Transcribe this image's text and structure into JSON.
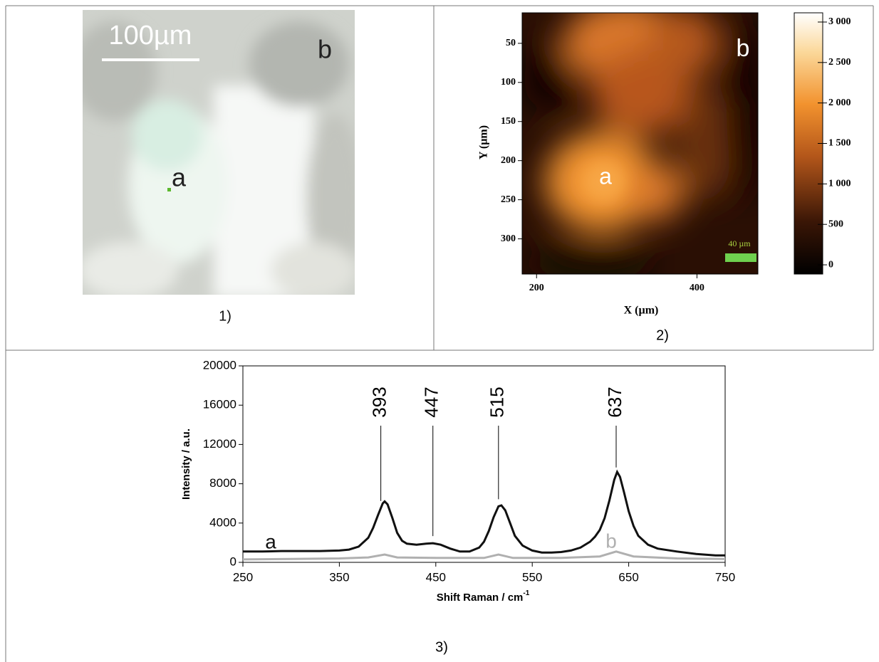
{
  "photo": {
    "scale_label": "100µm",
    "corner_label": "b",
    "point_label": "a",
    "caption": "1)"
  },
  "chart_data": [
    {
      "type": "heatmap",
      "x_label": "X (µm)",
      "y_label": "Y (µm)",
      "xlim": [
        182,
        476
      ],
      "xticks": [
        200,
        400
      ],
      "ylim": [
        11,
        345
      ],
      "y_inverted": true,
      "yticks": [
        50,
        100,
        150,
        200,
        250,
        300
      ],
      "colorbar": {
        "lim": [
          -114,
          3114
        ],
        "ticks": [
          0,
          500,
          {
            "value": 1000,
            "label": "1 000"
          },
          {
            "value": 1500,
            "label": "1 500"
          },
          {
            "value": 2000,
            "label": "2 000"
          },
          {
            "value": 2500,
            "label": "2 500"
          },
          {
            "value": 3000,
            "label": "3 000"
          }
        ]
      },
      "annotations": [
        "a",
        "b"
      ],
      "scale_bar_label": "40 µm",
      "caption": "2)"
    },
    {
      "type": "line",
      "x_label": "Shift Raman / cm",
      "x_label_sup": "-1",
      "y_label": "Intensity / a.u.",
      "xlim": [
        250,
        750
      ],
      "xticks": [
        250,
        350,
        450,
        550,
        650,
        750
      ],
      "ylim": [
        0,
        20000
      ],
      "yticks": [
        0,
        4000,
        8000,
        12000,
        16000,
        20000
      ],
      "series": [
        {
          "name": "a",
          "color": "#111111",
          "x": [
            250,
            270,
            290,
            310,
            330,
            350,
            360,
            370,
            380,
            385,
            390,
            395,
            397,
            400,
            405,
            410,
            415,
            420,
            430,
            440,
            447,
            455,
            465,
            475,
            485,
            495,
            500,
            505,
            510,
            515,
            518,
            522,
            527,
            532,
            540,
            550,
            560,
            570,
            580,
            590,
            600,
            610,
            615,
            620,
            625,
            630,
            635,
            638,
            641,
            645,
            650,
            655,
            660,
            670,
            680,
            700,
            720,
            740,
            750
          ],
          "values": [
            1100,
            1100,
            1150,
            1150,
            1150,
            1200,
            1300,
            1600,
            2500,
            3500,
            4800,
            6000,
            6200,
            5900,
            4500,
            3000,
            2200,
            1900,
            1800,
            1900,
            1950,
            1800,
            1400,
            1100,
            1100,
            1500,
            2100,
            3200,
            4600,
            5700,
            5800,
            5300,
            4000,
            2700,
            1700,
            1200,
            1000,
            1000,
            1050,
            1200,
            1500,
            2100,
            2600,
            3300,
            4500,
            6300,
            8400,
            9200,
            8700,
            7200,
            5200,
            3700,
            2700,
            1800,
            1400,
            1100,
            850,
            700,
            700
          ]
        },
        {
          "name": "b",
          "color": "#b0b0b0",
          "x": [
            250,
            300,
            350,
            380,
            397,
            410,
            450,
            500,
            515,
            530,
            580,
            620,
            637,
            655,
            700,
            750
          ],
          "values": [
            300,
            350,
            400,
            500,
            800,
            500,
            450,
            450,
            800,
            450,
            450,
            600,
            1100,
            600,
            400,
            350
          ]
        }
      ],
      "peaks": [
        393,
        447,
        515,
        637
      ],
      "caption": "3)"
    }
  ]
}
